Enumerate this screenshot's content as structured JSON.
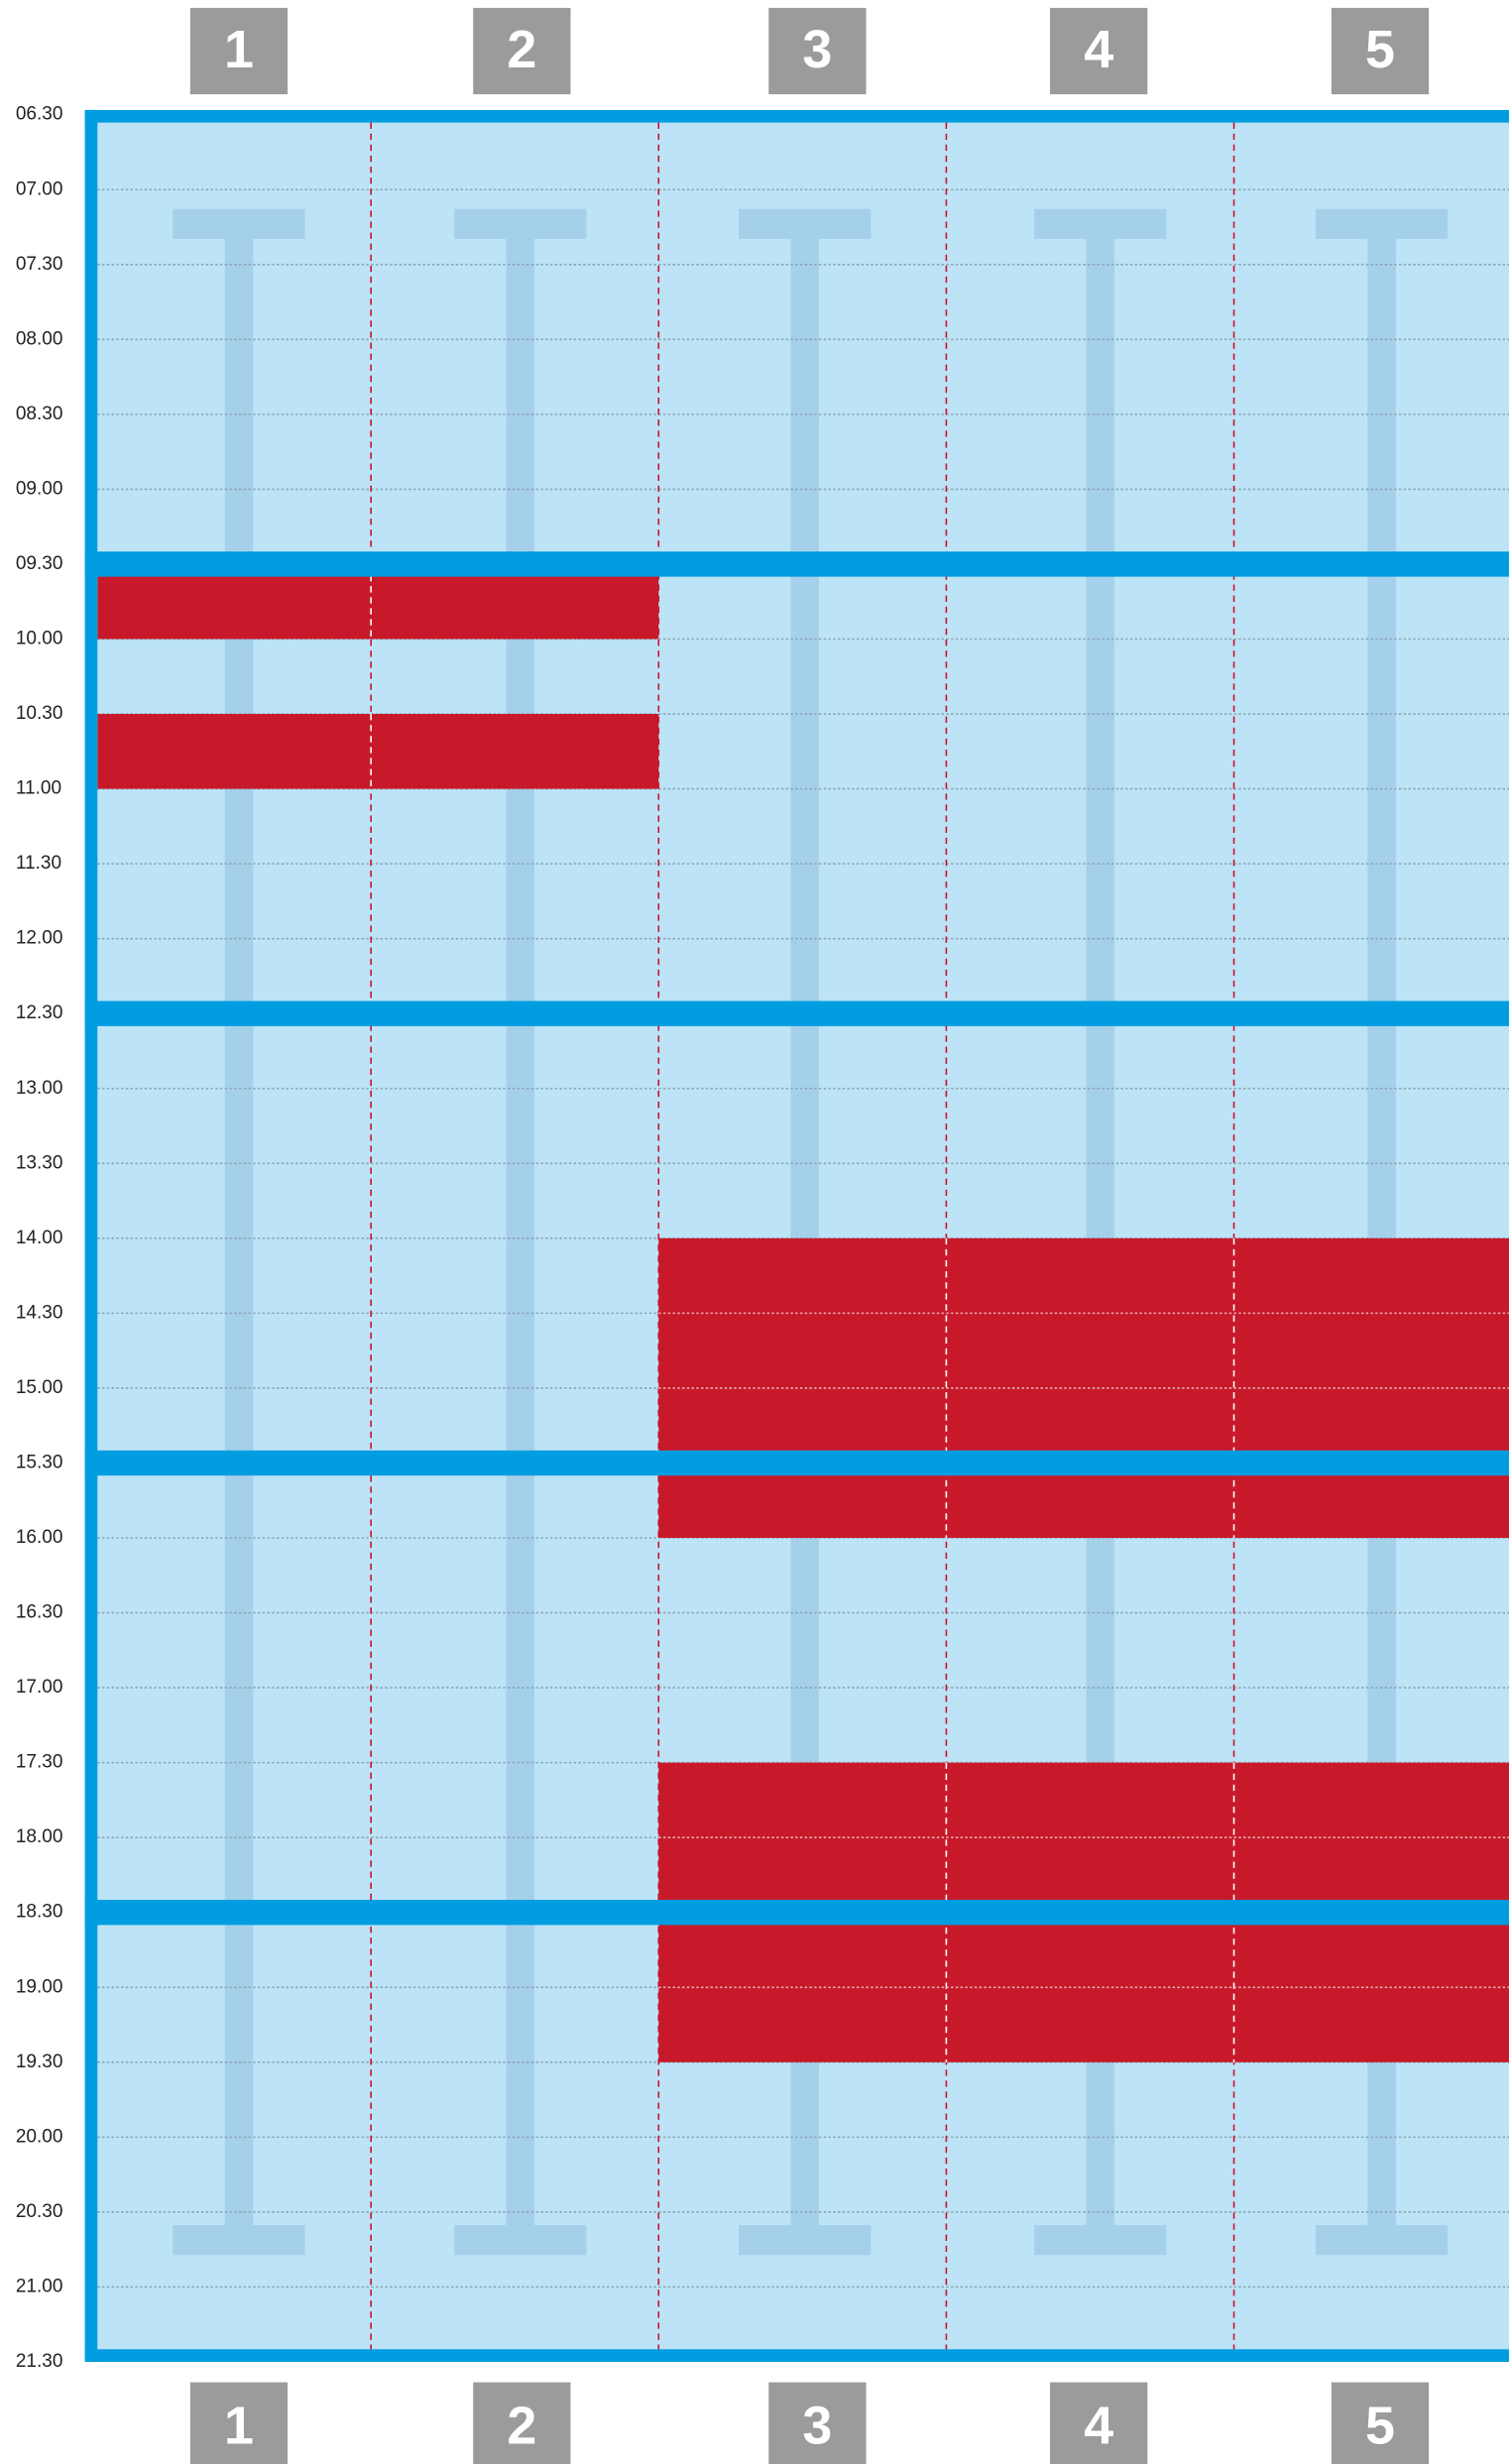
{
  "columns": [
    "1",
    "2",
    "3",
    "4",
    "5"
  ],
  "times": [
    "06.30",
    "07.00",
    "07.30",
    "08.00",
    "08.30",
    "09.00",
    "09.30",
    "10.00",
    "10.30",
    "11.00",
    "11.30",
    "12.00",
    "12.30",
    "13.00",
    "13.30",
    "14.00",
    "14.30",
    "15.00",
    "15.30",
    "16.00",
    "16.30",
    "17.00",
    "17.30",
    "18.00",
    "18.30",
    "19.00",
    "19.30",
    "20.00",
    "20.30",
    "21.00",
    "21.30"
  ],
  "bookings": [
    {
      "from_column": "1",
      "to_column": "2",
      "start": "09.30",
      "end": "10.00"
    },
    {
      "from_column": "1",
      "to_column": "2",
      "start": "10.30",
      "end": "11.00"
    },
    {
      "from_column": "3",
      "to_column": "5",
      "start": "14.00",
      "end": "16.00"
    },
    {
      "from_column": "3",
      "to_column": "5",
      "start": "17.30",
      "end": "19.30"
    }
  ]
}
